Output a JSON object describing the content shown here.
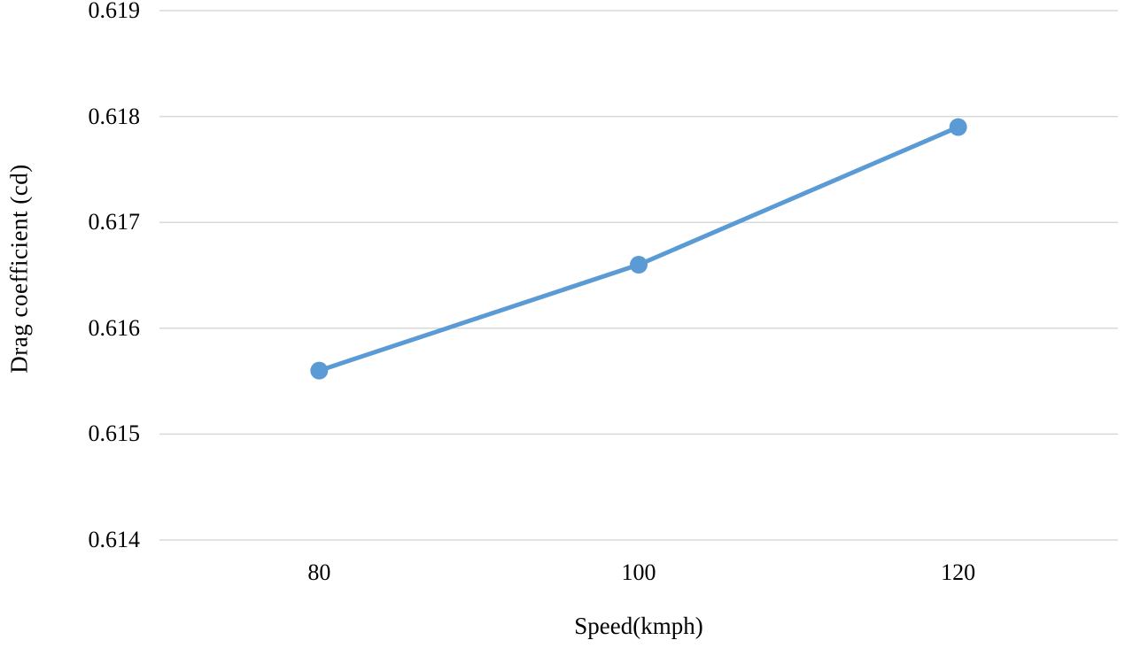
{
  "chart_data": {
    "type": "line",
    "title": "",
    "xlabel": "Speed(kmph)",
    "ylabel": "Drag coefficient (cd)",
    "categories": [
      "80",
      "100",
      "120"
    ],
    "x": [
      80,
      100,
      120
    ],
    "series": [
      {
        "name": "Drag coefficient (cd)",
        "values": [
          0.6156,
          0.6166,
          0.6179
        ]
      }
    ],
    "ylim": [
      0.614,
      0.619
    ],
    "yticks": [
      0.614,
      0.615,
      0.616,
      0.617,
      0.618,
      0.619
    ],
    "ytick_labels": [
      "0.614",
      "0.615",
      "0.616",
      "0.617",
      "0.618",
      "0.619"
    ],
    "grid": "horizontal-only",
    "legend": "none",
    "colors": {
      "line": "#5B9BD5",
      "marker": "#5B9BD5",
      "gridline": "#D9D9D9",
      "text": "#000000",
      "background": "#FFFFFF"
    },
    "marker_style": "circle",
    "line_width": 5,
    "marker_radius": 10
  }
}
